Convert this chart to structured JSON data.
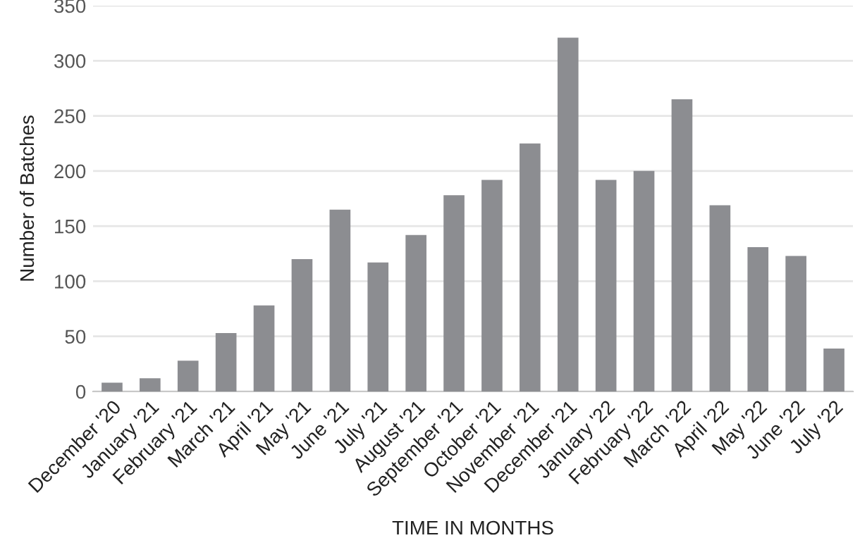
{
  "chart_data": {
    "type": "bar",
    "xlabel": "TIME IN MONTHS",
    "ylabel": "Number of Batches",
    "categories": [
      "December '20",
      "January '21",
      "February '21",
      "March '21",
      "April '21",
      "May '21",
      "June '21",
      "July '21",
      "August '21",
      "September '21",
      "October '21",
      "November '21",
      "December '21",
      "January '22",
      "February '22",
      "March '22",
      "April '22",
      "May '22",
      "June '22",
      "July '22"
    ],
    "values": [
      8,
      12,
      28,
      53,
      78,
      120,
      165,
      117,
      142,
      178,
      192,
      225,
      321,
      192,
      200,
      265,
      169,
      131,
      123,
      39
    ],
    "color": "#8c8d91",
    "ylim": [
      0,
      350
    ],
    "yticks": [
      0,
      50,
      100,
      150,
      200,
      250,
      300,
      350
    ],
    "grid": "y",
    "legend": false
  }
}
